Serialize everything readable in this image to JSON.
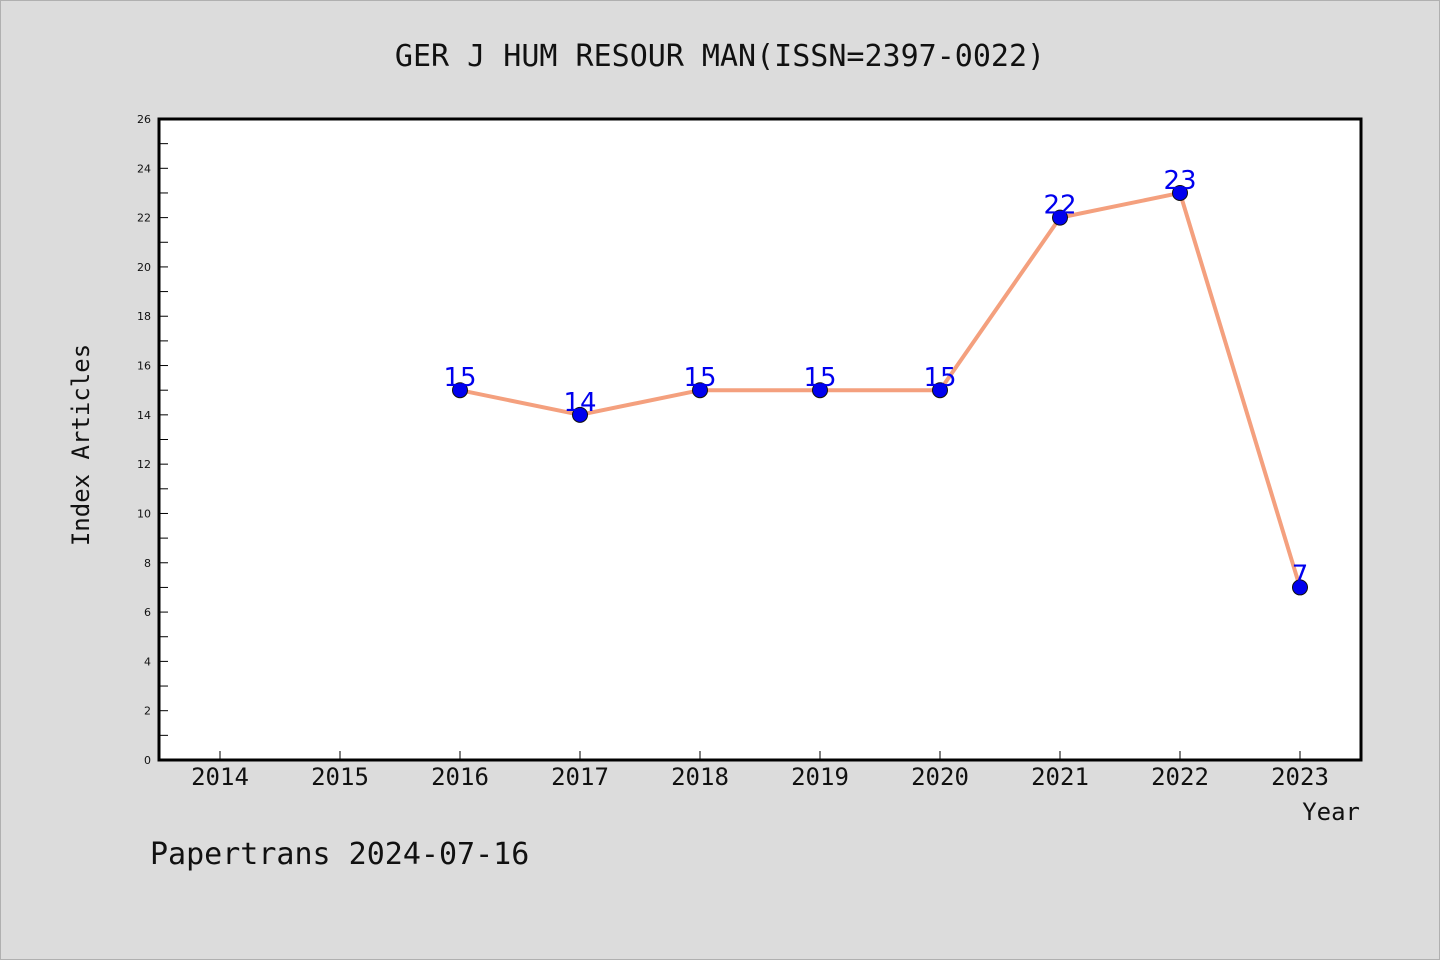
{
  "chart_data": {
    "type": "line",
    "title": "GER J HUM RESOUR MAN(ISSN=2397-0022)",
    "xlabel": "Year",
    "ylabel": "Index Articles",
    "categories": [
      "2014",
      "2015",
      "2016",
      "2017",
      "2018",
      "2019",
      "2020",
      "2021",
      "2022",
      "2023"
    ],
    "series": [
      {
        "x": [
          "2016",
          "2017",
          "2018",
          "2019",
          "2020",
          "2021",
          "2022",
          "2023"
        ],
        "values": [
          15,
          14,
          15,
          15,
          15,
          22,
          23,
          7
        ]
      }
    ],
    "ylim": [
      0,
      26
    ],
    "yticks": [
      0,
      2,
      4,
      6,
      8,
      10,
      12,
      14,
      16,
      18,
      20,
      22,
      24,
      26
    ],
    "grid": false,
    "line_color": "#f4a07e",
    "marker_color": "#0000ee",
    "label_color": "#0000ee"
  },
  "footer": {
    "text": "Papertrans 2024-07-16"
  }
}
